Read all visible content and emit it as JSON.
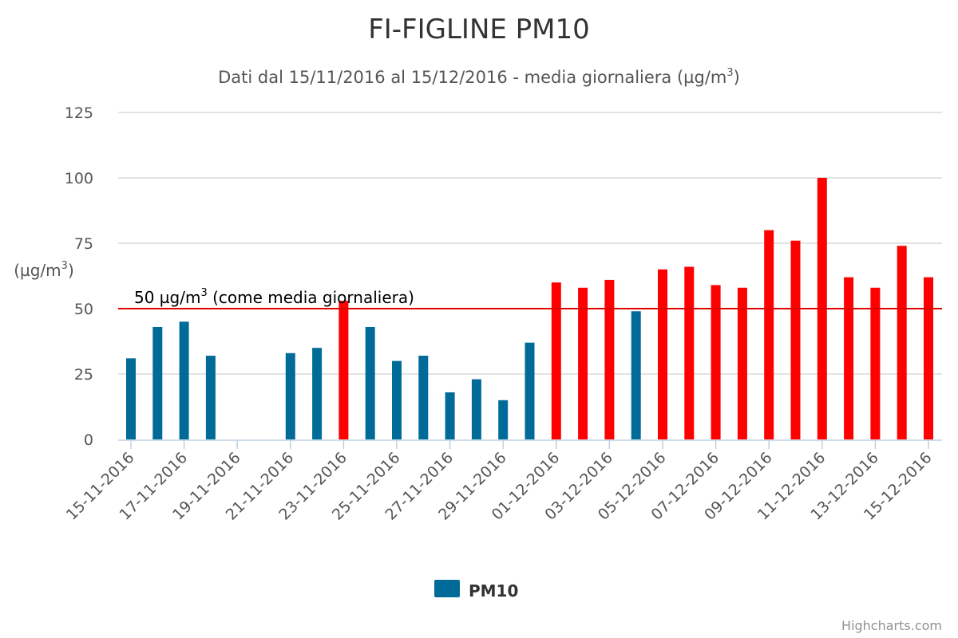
{
  "chart_data": {
    "type": "bar",
    "title": "FI-FIGLINE PM10",
    "subtitle": {
      "main": "Dati dal 15/11/2016 al 15/12/2016 - media giornaliera (µg/m",
      "sup": "3",
      "tail": ")"
    },
    "ylabel": {
      "main": "(µg/m",
      "sup": "3",
      "tail": ")"
    },
    "ylim": [
      0,
      125
    ],
    "yticks": [
      "0",
      "25",
      "50",
      "75",
      "100",
      "125"
    ],
    "grid": true,
    "categories": [
      "15-11-2016",
      "16-11-2016",
      "17-11-2016",
      "18-11-2016",
      "19-11-2016",
      "20-11-2016",
      "21-11-2016",
      "22-11-2016",
      "23-11-2016",
      "24-11-2016",
      "25-11-2016",
      "26-11-2016",
      "27-11-2016",
      "28-11-2016",
      "29-11-2016",
      "30-11-2016",
      "01-12-2016",
      "02-12-2016",
      "03-12-2016",
      "04-12-2016",
      "05-12-2016",
      "06-12-2016",
      "07-12-2016",
      "08-12-2016",
      "09-12-2016",
      "10-12-2016",
      "11-12-2016",
      "12-12-2016",
      "13-12-2016",
      "14-12-2016",
      "15-12-2016"
    ],
    "xtick_labels": [
      "15-11-2016",
      "17-11-2016",
      "19-11-2016",
      "21-11-2016",
      "23-11-2016",
      "25-11-2016",
      "27-11-2016",
      "29-11-2016",
      "01-12-2016",
      "03-12-2016",
      "05-12-2016",
      "07-12-2016",
      "09-12-2016",
      "11-12-2016",
      "13-12-2016",
      "15-12-2016"
    ],
    "series": [
      {
        "name": "PM10",
        "values": [
          31,
          43,
          45,
          32,
          null,
          null,
          33,
          35,
          53,
          43,
          30,
          32,
          18,
          23,
          15,
          37,
          60,
          58,
          61,
          49,
          65,
          66,
          59,
          58,
          80,
          76,
          100,
          62,
          58,
          74,
          62
        ]
      }
    ],
    "threshold": {
      "value": 50,
      "label": {
        "main": "50 µg/m",
        "sup": "3",
        "tail": " (come media giornaliera)"
      },
      "color": "#e00000"
    },
    "legend": {
      "position": "bottom-center",
      "label": "PM10"
    },
    "colors": {
      "normal": "#006a99",
      "exceed": "#ff0000",
      "grid": "#d8d8d8",
      "axis": "#c0d0e0"
    },
    "credits": "Highcharts.com"
  }
}
